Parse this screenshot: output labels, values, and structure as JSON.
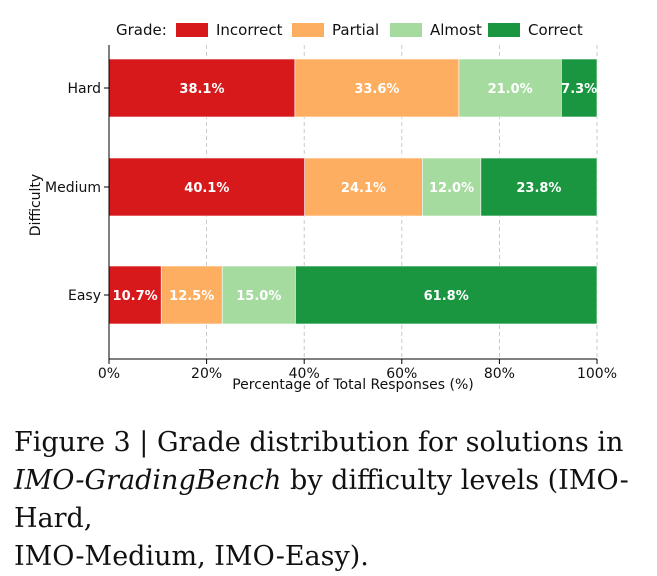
{
  "chart_data": {
    "type": "bar",
    "orientation": "horizontal",
    "stacked": true,
    "title": "",
    "xlabel": "Percentage of Total Responses (%)",
    "ylabel": "Difficulty",
    "xlim": [
      0,
      100
    ],
    "x_ticks": [
      "0%",
      "20%",
      "40%",
      "60%",
      "80%",
      "100%"
    ],
    "x_tick_values": [
      0,
      20,
      40,
      60,
      80,
      100
    ],
    "grid": "x, dashed",
    "legend_title": "Grade:",
    "legend_position": "top",
    "categories": [
      "Hard",
      "Medium",
      "Easy"
    ],
    "series": [
      {
        "name": "Incorrect",
        "color": "#d7191c",
        "values": [
          38.1,
          40.1,
          10.7
        ],
        "labels": [
          "38.1%",
          "40.1%",
          "10.7%"
        ]
      },
      {
        "name": "Partial",
        "color": "#fdae61",
        "values": [
          33.6,
          24.1,
          12.5
        ],
        "labels": [
          "33.6%",
          "24.1%",
          "12.5%"
        ]
      },
      {
        "name": "Almost",
        "color": "#a6dba0",
        "values": [
          21.0,
          12.0,
          15.0
        ],
        "labels": [
          "21.0%",
          "12.0%",
          "15.0%"
        ]
      },
      {
        "name": "Correct",
        "color": "#1a9641",
        "values": [
          7.3,
          23.8,
          61.8
        ],
        "labels": [
          "7.3%",
          "23.8%",
          "61.8%"
        ]
      }
    ]
  },
  "caption": {
    "figure_label": "Figure 3 | Grade distribution for solutions in",
    "italic_part": "IMO-GradingBench",
    "rest_line2": " by difficulty levels (IMO-Hard,",
    "line3": "IMO-Medium, IMO-Easy)."
  }
}
